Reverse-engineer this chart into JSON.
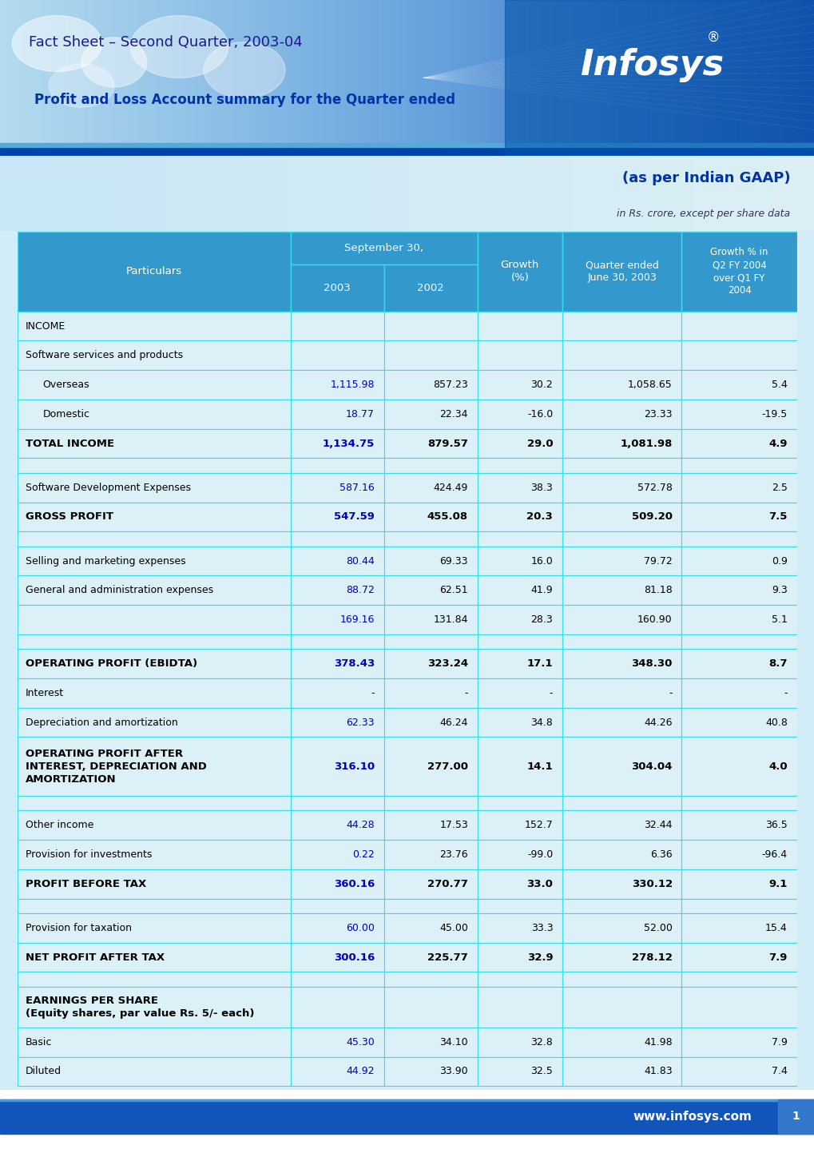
{
  "title_factsheet": "Fact Sheet – Second Quarter, 2003-04",
  "title_report": "Profit and Loss Account summary for the Quarter ended",
  "subtitle_gaap": "(as per Indian GAAP)",
  "subtitle_unit": "in Rs. crore, except per share data",
  "rows": [
    {
      "label": "INCOME",
      "indent": 0,
      "bold": false,
      "type": "section",
      "v2003": "",
      "v2002": "",
      "growth": "",
      "vqtr": "",
      "growthpct": "",
      "blue2003": false
    },
    {
      "label": "Software services and products",
      "indent": 0,
      "bold": false,
      "type": "normal",
      "v2003": "",
      "v2002": "",
      "growth": "",
      "vqtr": "",
      "growthpct": "",
      "blue2003": false
    },
    {
      "label": "Overseas",
      "indent": 1,
      "bold": false,
      "type": "normal",
      "v2003": "1,115.98",
      "v2002": "857.23",
      "growth": "30.2",
      "vqtr": "1,058.65",
      "growthpct": "5.4",
      "blue2003": true
    },
    {
      "label": "Domestic",
      "indent": 1,
      "bold": false,
      "type": "normal",
      "v2003": "18.77",
      "v2002": "22.34",
      "growth": "-16.0",
      "vqtr": "23.33",
      "growthpct": "-19.5",
      "blue2003": true
    },
    {
      "label": "TOTAL INCOME",
      "indent": 0,
      "bold": true,
      "type": "bold",
      "v2003": "1,134.75",
      "v2002": "879.57",
      "growth": "29.0",
      "vqtr": "1,081.98",
      "growthpct": "4.9",
      "blue2003": true
    },
    {
      "label": "",
      "indent": 0,
      "bold": false,
      "type": "spacer",
      "v2003": "",
      "v2002": "",
      "growth": "",
      "vqtr": "",
      "growthpct": "",
      "blue2003": false
    },
    {
      "label": "Software Development Expenses",
      "indent": 0,
      "bold": false,
      "type": "normal",
      "v2003": "587.16",
      "v2002": "424.49",
      "growth": "38.3",
      "vqtr": "572.78",
      "growthpct": "2.5",
      "blue2003": true
    },
    {
      "label": "GROSS PROFIT",
      "indent": 0,
      "bold": true,
      "type": "bold",
      "v2003": "547.59",
      "v2002": "455.08",
      "growth": "20.3",
      "vqtr": "509.20",
      "growthpct": "7.5",
      "blue2003": true
    },
    {
      "label": "",
      "indent": 0,
      "bold": false,
      "type": "spacer",
      "v2003": "",
      "v2002": "",
      "growth": "",
      "vqtr": "",
      "growthpct": "",
      "blue2003": false
    },
    {
      "label": "Selling and marketing expenses",
      "indent": 0,
      "bold": false,
      "type": "normal",
      "v2003": "80.44",
      "v2002": "69.33",
      "growth": "16.0",
      "vqtr": "79.72",
      "growthpct": "0.9",
      "blue2003": true
    },
    {
      "label": "General and administration expenses",
      "indent": 0,
      "bold": false,
      "type": "normal",
      "v2003": "88.72",
      "v2002": "62.51",
      "growth": "41.9",
      "vqtr": "81.18",
      "growthpct": "9.3",
      "blue2003": true
    },
    {
      "label": "",
      "indent": 0,
      "bold": false,
      "type": "subtotal",
      "v2003": "169.16",
      "v2002": "131.84",
      "growth": "28.3",
      "vqtr": "160.90",
      "growthpct": "5.1",
      "blue2003": true
    },
    {
      "label": "",
      "indent": 0,
      "bold": false,
      "type": "spacer",
      "v2003": "",
      "v2002": "",
      "growth": "",
      "vqtr": "",
      "growthpct": "",
      "blue2003": false
    },
    {
      "label": "OPERATING PROFIT (EBIDTA)",
      "indent": 0,
      "bold": true,
      "type": "bold",
      "v2003": "378.43",
      "v2002": "323.24",
      "growth": "17.1",
      "vqtr": "348.30",
      "growthpct": "8.7",
      "blue2003": true
    },
    {
      "label": "Interest",
      "indent": 0,
      "bold": false,
      "type": "normal",
      "v2003": "-",
      "v2002": "-",
      "growth": "-",
      "vqtr": "-",
      "growthpct": "-",
      "blue2003": false
    },
    {
      "label": "Depreciation and amortization",
      "indent": 0,
      "bold": false,
      "type": "normal",
      "v2003": "62.33",
      "v2002": "46.24",
      "growth": "34.8",
      "vqtr": "44.26",
      "growthpct": "40.8",
      "blue2003": true
    },
    {
      "label": "OPERATING PROFIT AFTER\nINTEREST, DEPRECIATION AND\nAMORTIZATION",
      "indent": 0,
      "bold": true,
      "type": "bold_multiline",
      "v2003": "316.10",
      "v2002": "277.00",
      "growth": "14.1",
      "vqtr": "304.04",
      "growthpct": "4.0",
      "blue2003": true
    },
    {
      "label": "",
      "indent": 0,
      "bold": false,
      "type": "spacer",
      "v2003": "",
      "v2002": "",
      "growth": "",
      "vqtr": "",
      "growthpct": "",
      "blue2003": false
    },
    {
      "label": "Other income",
      "indent": 0,
      "bold": false,
      "type": "normal",
      "v2003": "44.28",
      "v2002": "17.53",
      "growth": "152.7",
      "vqtr": "32.44",
      "growthpct": "36.5",
      "blue2003": true
    },
    {
      "label": "Provision for investments",
      "indent": 0,
      "bold": false,
      "type": "normal",
      "v2003": "0.22",
      "v2002": "23.76",
      "growth": "-99.0",
      "vqtr": "6.36",
      "growthpct": "-96.4",
      "blue2003": true
    },
    {
      "label": "PROFIT BEFORE TAX",
      "indent": 0,
      "bold": true,
      "type": "bold",
      "v2003": "360.16",
      "v2002": "270.77",
      "growth": "33.0",
      "vqtr": "330.12",
      "growthpct": "9.1",
      "blue2003": true
    },
    {
      "label": "",
      "indent": 0,
      "bold": false,
      "type": "spacer",
      "v2003": "",
      "v2002": "",
      "growth": "",
      "vqtr": "",
      "growthpct": "",
      "blue2003": false
    },
    {
      "label": "Provision for taxation",
      "indent": 0,
      "bold": false,
      "type": "normal",
      "v2003": "60.00",
      "v2002": "45.00",
      "growth": "33.3",
      "vqtr": "52.00",
      "growthpct": "15.4",
      "blue2003": true
    },
    {
      "label": "NET PROFIT AFTER TAX",
      "indent": 0,
      "bold": true,
      "type": "bold",
      "v2003": "300.16",
      "v2002": "225.77",
      "growth": "32.9",
      "vqtr": "278.12",
      "growthpct": "7.9",
      "blue2003": true
    },
    {
      "label": "",
      "indent": 0,
      "bold": false,
      "type": "spacer",
      "v2003": "",
      "v2002": "",
      "growth": "",
      "vqtr": "",
      "growthpct": "",
      "blue2003": false
    },
    {
      "label": "EARNINGS PER SHARE\n(Equity shares, par value Rs. 5/- each)",
      "indent": 0,
      "bold": true,
      "type": "bold_multiline2",
      "v2003": "",
      "v2002": "",
      "growth": "",
      "vqtr": "",
      "growthpct": "",
      "blue2003": false
    },
    {
      "label": "Basic",
      "indent": 0,
      "bold": false,
      "type": "normal",
      "v2003": "45.30",
      "v2002": "34.10",
      "growth": "32.8",
      "vqtr": "41.98",
      "growthpct": "7.9",
      "blue2003": true
    },
    {
      "label": "Diluted",
      "indent": 0,
      "bold": false,
      "type": "normal",
      "v2003": "44.92",
      "v2002": "33.90",
      "growth": "32.5",
      "vqtr": "41.83",
      "growthpct": "7.4",
      "blue2003": true
    }
  ],
  "footer_url": "www.infosys.com",
  "footer_page": "1",
  "col_props": [
    0.315,
    0.108,
    0.108,
    0.098,
    0.138,
    0.133
  ],
  "header_bg": "#3399CC",
  "cell_bg": "#DCF0F8",
  "border_color": "#33DDEE",
  "page_bg": "#C8E8F5",
  "footer_blue": "#1155AA",
  "footer_light": "#4499DD"
}
